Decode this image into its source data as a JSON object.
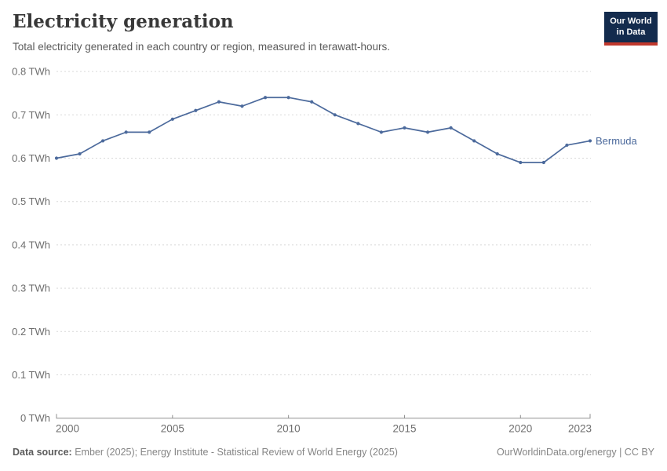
{
  "header": {
    "title": "Electricity generation",
    "subtitle": "Total electricity generated in each country or region, measured in terawatt-hours."
  },
  "logo": {
    "line1": "Our World",
    "line2": "in Data"
  },
  "chart_data": {
    "type": "line",
    "title": "Electricity generation",
    "subtitle": "Total electricity generated in each country or region, measured in terawatt-hours.",
    "unit": "TWh",
    "x": [
      2000,
      2001,
      2002,
      2003,
      2004,
      2005,
      2006,
      2007,
      2008,
      2009,
      2010,
      2011,
      2012,
      2013,
      2014,
      2015,
      2016,
      2017,
      2018,
      2019,
      2020,
      2021,
      2022,
      2023
    ],
    "series": [
      {
        "name": "Bermuda",
        "color": "#4C6A9C",
        "values": [
          0.6,
          0.61,
          0.64,
          0.66,
          0.66,
          0.69,
          0.71,
          0.73,
          0.72,
          0.74,
          0.74,
          0.73,
          0.7,
          0.68,
          0.66,
          0.67,
          0.66,
          0.67,
          0.64,
          0.61,
          0.59,
          0.59,
          0.63,
          0.64
        ]
      }
    ],
    "xlim": [
      2000,
      2023
    ],
    "ylim": [
      0,
      0.8
    ],
    "xticks": [
      2000,
      2005,
      2010,
      2015,
      2020,
      2023
    ],
    "yticks": [
      0,
      0.1,
      0.2,
      0.3,
      0.4,
      0.5,
      0.6,
      0.7,
      0.8
    ],
    "ytick_suffix": " TWh",
    "grid": "horizontal-dashed",
    "legend_position": "right-end-label"
  },
  "footer": {
    "datasource_label": "Data source:",
    "datasource_text": " Ember (2025); Energy Institute - Statistical Review of World Energy (2025)",
    "credit": "OurWorldinData.org/energy | CC BY"
  },
  "colors": {
    "line": "#4C6A9C",
    "grid": "#d9d9d9",
    "axis": "#8f8f8f",
    "tick_label": "#6e6e6e",
    "title": "#383838",
    "subtitle": "#5b5b5b",
    "footer": "#858585",
    "logo_bg": "#132B4D",
    "logo_bar": "#C0382D"
  }
}
